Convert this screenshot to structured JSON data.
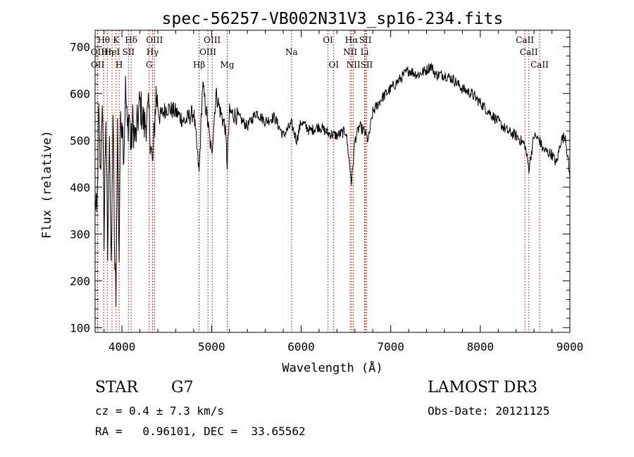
{
  "chart_data": {
    "type": "line",
    "title": "spec-56257-VB002N31V3_sp16-234.fits",
    "xlabel": "Wavelength (Å)",
    "ylabel": "Flux (relative)",
    "xlim": [
      3700,
      9000
    ],
    "ylim": [
      90,
      735
    ],
    "xticks": [
      4000,
      5000,
      6000,
      7000,
      8000,
      9000
    ],
    "yticks": [
      100,
      200,
      300,
      400,
      500,
      600,
      700
    ],
    "series": [
      {
        "name": "flux",
        "x": [
          3700,
          3720,
          3740,
          3760,
          3780,
          3800,
          3820,
          3840,
          3860,
          3880,
          3900,
          3920,
          3933,
          3950,
          3968,
          3980,
          4000,
          4020,
          4040,
          4060,
          4080,
          4101,
          4120,
          4150,
          4200,
          4250,
          4300,
          4340,
          4380,
          4420,
          4500,
          4600,
          4700,
          4800,
          4861,
          4900,
          4950,
          5000,
          5050,
          5100,
          5150,
          5175,
          5200,
          5300,
          5400,
          5500,
          5600,
          5700,
          5800,
          5893,
          5950,
          6000,
          6100,
          6200,
          6300,
          6400,
          6500,
          6563,
          6600,
          6650,
          6700,
          6750,
          6800,
          6900,
          7000,
          7100,
          7200,
          7300,
          7400,
          7450,
          7500,
          7600,
          7700,
          7800,
          7900,
          8000,
          8100,
          8200,
          8300,
          8400,
          8498,
          8542,
          8600,
          8662,
          8700,
          8800,
          8850,
          8900,
          8950,
          9000
        ],
        "y": [
          380,
          330,
          560,
          420,
          600,
          300,
          560,
          250,
          540,
          200,
          560,
          220,
          180,
          530,
          250,
          510,
          560,
          470,
          610,
          520,
          560,
          480,
          540,
          500,
          580,
          530,
          560,
          440,
          600,
          550,
          570,
          560,
          540,
          560,
          430,
          620,
          550,
          470,
          600,
          560,
          530,
          450,
          560,
          550,
          530,
          560,
          540,
          550,
          510,
          535,
          500,
          540,
          520,
          530,
          515,
          510,
          520,
          410,
          500,
          530,
          520,
          500,
          560,
          590,
          610,
          630,
          650,
          640,
          650,
          660,
          640,
          640,
          630,
          610,
          600,
          580,
          560,
          540,
          520,
          510,
          490,
          440,
          510,
          500,
          480,
          470,
          450,
          500,
          510,
          420
        ]
      }
    ],
    "lines": [
      {
        "name": "Hθ",
        "x": 3797,
        "row": 1
      },
      {
        "name": "OII",
        "x": 3727,
        "row": 2
      },
      {
        "name": "OII",
        "x": 3729,
        "row": 3
      },
      {
        "name": "Hη",
        "x": 3835,
        "row": 2
      },
      {
        "name": "K",
        "x": 3934,
        "row": 1
      },
      {
        "name": "HeI",
        "x": 3889,
        "row": 2
      },
      {
        "name": "H",
        "x": 3968,
        "row": 3
      },
      {
        "name": "SII",
        "x": 4072,
        "row": 2
      },
      {
        "name": "Hδ",
        "x": 4102,
        "row": 1
      },
      {
        "name": "OIII",
        "x": 4363,
        "row": 1
      },
      {
        "name": "Hγ",
        "x": 4341,
        "row": 2
      },
      {
        "name": "G",
        "x": 4304,
        "row": 3
      },
      {
        "name": "Hβ",
        "x": 4861,
        "row": 3
      },
      {
        "name": "OIII",
        "x": 5007,
        "row": 1
      },
      {
        "name": "OIII",
        "x": 4959,
        "row": 2
      },
      {
        "name": "Mg",
        "x": 5175,
        "row": 3
      },
      {
        "name": "Na",
        "x": 5893,
        "row": 2
      },
      {
        "name": "OI",
        "x": 6300,
        "row": 1
      },
      {
        "name": "OI",
        "x": 6364,
        "row": 3
      },
      {
        "name": "Hα",
        "x": 6563,
        "row": 1
      },
      {
        "name": "NII",
        "x": 6548,
        "row": 2
      },
      {
        "name": "NII",
        "x": 6583,
        "row": 3
      },
      {
        "name": "SII",
        "x": 6716,
        "row": 1
      },
      {
        "name": "Li",
        "x": 6708,
        "row": 2
      },
      {
        "name": "SII",
        "x": 6731,
        "row": 3
      },
      {
        "name": "CaII",
        "x": 8498,
        "row": 1
      },
      {
        "name": "CaII",
        "x": 8542,
        "row": 2
      },
      {
        "name": "CaII",
        "x": 8662,
        "row": 3
      }
    ]
  },
  "info": {
    "class_label": "STAR",
    "subclass_label": "G7",
    "survey": "LAMOST DR3",
    "redshift_text": "cz = 0.4 ± 7.3 km/s",
    "obs_date_text": "Obs-Date: 20121125",
    "coords_text": "RA =   0.96101, DEC =  33.65562"
  }
}
